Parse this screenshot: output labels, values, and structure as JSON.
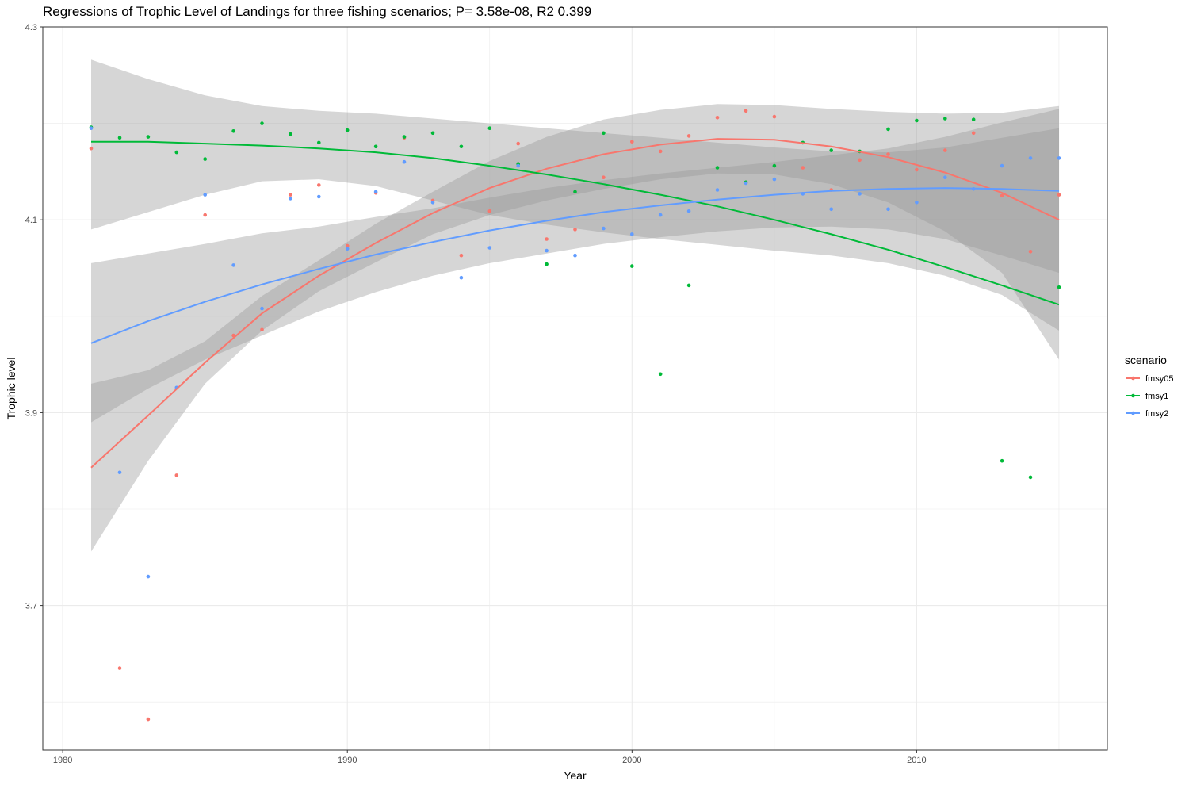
{
  "chart_data": {
    "type": "scatter",
    "title": "Regressions of Trophic Level of Landings for three fishing scenarios; P= 3.58e-08, R2 0.399",
    "xlabel": "Year",
    "ylabel": "Trophic level",
    "xlim": [
      1979.3,
      2016.7
    ],
    "ylim": [
      3.55,
      4.3
    ],
    "x_ticks": [
      1980,
      1990,
      2000,
      2010
    ],
    "x_tick_labels": [
      "1980",
      "1990",
      "2000",
      "2010"
    ],
    "y_ticks": [
      3.7,
      3.9,
      4.1,
      4.3
    ],
    "y_tick_labels": [
      "3.7",
      "3.9",
      "4.1",
      "4.3"
    ],
    "y_minor": [
      3.6,
      3.8,
      4.0,
      4.2
    ],
    "x_minor": [
      1985,
      1995,
      2005,
      2015
    ],
    "grid": true,
    "legend": {
      "title": "scenario",
      "position": "right"
    },
    "series": [
      {
        "name": "fmsy05",
        "color": "#F8766D",
        "x": [
          1981,
          1982,
          1983,
          1984,
          1985,
          1986,
          1987,
          1988,
          1989,
          1990,
          1991,
          1992,
          1993,
          1994,
          1995,
          1996,
          1997,
          1998,
          1999,
          2000,
          2001,
          2002,
          2003,
          2004,
          2005,
          2006,
          2007,
          2008,
          2009,
          2010,
          2011,
          2012,
          2013,
          2014,
          2015
        ],
        "y": [
          4.174,
          3.635,
          3.582,
          3.835,
          4.105,
          3.98,
          3.986,
          4.126,
          4.136,
          4.073,
          4.128,
          4.185,
          4.12,
          4.063,
          4.109,
          4.179,
          4.08,
          4.09,
          4.144,
          4.181,
          4.171,
          4.187,
          4.206,
          4.213,
          4.207,
          4.154,
          4.131,
          4.162,
          4.168,
          4.152,
          4.172,
          4.19,
          4.125,
          4.067,
          4.126
        ],
        "fit_x": [
          1981,
          1983,
          1985,
          1987,
          1989,
          1991,
          1993,
          1995,
          1997,
          1999,
          2001,
          2003,
          2005,
          2007,
          2009,
          2011,
          2013,
          2015
        ],
        "fit_y": [
          3.843,
          3.897,
          3.952,
          4.003,
          4.042,
          4.076,
          4.107,
          4.133,
          4.153,
          4.168,
          4.178,
          4.184,
          4.183,
          4.176,
          4.165,
          4.149,
          4.128,
          4.1
        ],
        "fit_lower": [
          3.756,
          3.85,
          3.93,
          3.985,
          4.026,
          4.056,
          4.085,
          4.105,
          4.12,
          4.132,
          4.142,
          4.148,
          4.147,
          4.137,
          4.118,
          4.088,
          4.045,
          3.955
        ],
        "fit_upper": [
          3.93,
          3.944,
          3.974,
          4.021,
          4.058,
          4.096,
          4.129,
          4.161,
          4.186,
          4.204,
          4.214,
          4.22,
          4.219,
          4.215,
          4.212,
          4.21,
          4.211,
          4.218
        ]
      },
      {
        "name": "fmsy1",
        "color": "#00BA38",
        "x": [
          1981,
          1982,
          1983,
          1984,
          1985,
          1986,
          1987,
          1988,
          1989,
          1990,
          1991,
          1992,
          1993,
          1994,
          1995,
          1996,
          1997,
          1998,
          1999,
          2000,
          2001,
          2002,
          2003,
          2004,
          2005,
          2006,
          2007,
          2008,
          2009,
          2010,
          2011,
          2012,
          2013,
          2014,
          2015
        ],
        "y": [
          4.196,
          4.185,
          4.186,
          4.17,
          4.163,
          4.192,
          4.2,
          4.189,
          4.18,
          4.193,
          4.176,
          4.186,
          4.19,
          4.176,
          4.195,
          4.158,
          4.054,
          4.129,
          4.19,
          4.052,
          3.94,
          4.032,
          4.154,
          4.139,
          4.156,
          4.18,
          4.172,
          4.171,
          4.194,
          4.203,
          4.205,
          4.204,
          3.85,
          3.833,
          4.03
        ],
        "fit_x": [
          1981,
          1983,
          1985,
          1987,
          1989,
          1991,
          1993,
          1995,
          1997,
          1999,
          2001,
          2003,
          2005,
          2007,
          2009,
          2011,
          2013,
          2015
        ],
        "fit_y": [
          4.181,
          4.181,
          4.179,
          4.177,
          4.174,
          4.17,
          4.164,
          4.156,
          4.147,
          4.137,
          4.126,
          4.114,
          4.1,
          4.085,
          4.069,
          4.051,
          4.032,
          4.012
        ],
        "fit_lower": [
          4.09,
          4.108,
          4.126,
          4.14,
          4.142,
          4.135,
          4.12,
          4.105,
          4.095,
          4.087,
          4.08,
          4.074,
          4.068,
          4.063,
          4.055,
          4.042,
          4.022,
          3.985
        ],
        "fit_upper": [
          4.266,
          4.246,
          4.229,
          4.218,
          4.213,
          4.21,
          4.205,
          4.2,
          4.195,
          4.19,
          4.185,
          4.18,
          4.175,
          4.171,
          4.17,
          4.175,
          4.185,
          4.195
        ]
      },
      {
        "name": "fmsy2",
        "color": "#619CFF",
        "x": [
          1981,
          1982,
          1983,
          1984,
          1985,
          1986,
          1987,
          1988,
          1989,
          1990,
          1991,
          1992,
          1993,
          1994,
          1995,
          1996,
          1997,
          1998,
          1999,
          2000,
          2001,
          2002,
          2003,
          2004,
          2005,
          2006,
          2007,
          2008,
          2009,
          2010,
          2011,
          2012,
          2013,
          2014,
          2015
        ],
        "y": [
          4.195,
          3.838,
          3.73,
          3.926,
          4.126,
          4.053,
          4.008,
          4.122,
          4.124,
          4.07,
          4.129,
          4.16,
          4.118,
          4.04,
          4.071,
          4.156,
          4.068,
          4.063,
          4.091,
          4.085,
          4.105,
          4.109,
          4.131,
          4.138,
          4.142,
          4.127,
          4.111,
          4.127,
          4.111,
          4.118,
          4.144,
          4.132,
          4.156,
          4.164,
          4.164
        ],
        "fit_x": [
          1981,
          1983,
          1985,
          1987,
          1989,
          1991,
          1993,
          1995,
          1997,
          1999,
          2001,
          2003,
          2005,
          2007,
          2009,
          2011,
          2013,
          2015
        ],
        "fit_y": [
          3.972,
          3.995,
          4.015,
          4.033,
          4.049,
          4.064,
          4.077,
          4.089,
          4.099,
          4.108,
          4.115,
          4.121,
          4.126,
          4.13,
          4.132,
          4.133,
          4.132,
          4.13
        ],
        "fit_lower": [
          3.89,
          3.925,
          3.955,
          3.98,
          4.005,
          4.025,
          4.042,
          4.055,
          4.065,
          4.075,
          4.082,
          4.088,
          4.092,
          4.093,
          4.09,
          4.08,
          4.063,
          4.045
        ],
        "fit_upper": [
          4.055,
          4.065,
          4.075,
          4.086,
          4.093,
          4.103,
          4.112,
          4.123,
          4.133,
          4.141,
          4.148,
          4.154,
          4.16,
          4.167,
          4.174,
          4.186,
          4.201,
          4.215
        ]
      }
    ]
  }
}
